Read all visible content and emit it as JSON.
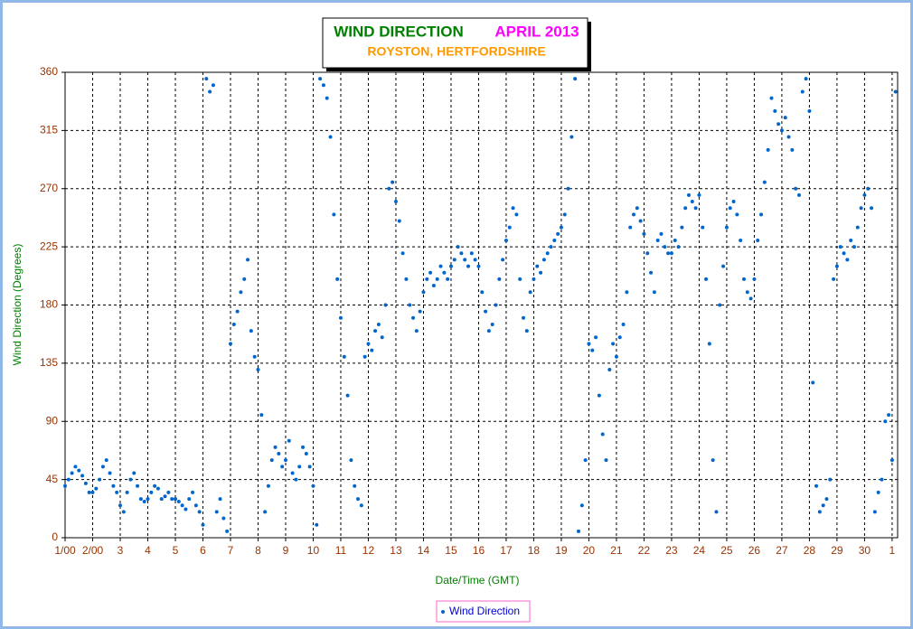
{
  "chart_data": {
    "type": "scatter",
    "title": "WIND DIRECTION",
    "title_date": "APRIL 2013",
    "subtitle": "ROYSTON, HERTFORDSHIRE",
    "x_label": "Date/Time (GMT)",
    "y_label": "Wind Direction (Degrees)",
    "xlim": [
      1,
      31.2
    ],
    "ylim": [
      0,
      360
    ],
    "xticks": [
      {
        "value": 1,
        "label": "1/00"
      },
      {
        "value": 2,
        "label": "2/00"
      },
      3,
      4,
      5,
      6,
      7,
      8,
      9,
      10,
      11,
      12,
      13,
      14,
      15,
      16,
      17,
      18,
      19,
      20,
      21,
      22,
      23,
      24,
      25,
      26,
      27,
      28,
      29,
      30,
      {
        "value": 31,
        "label": "1"
      }
    ],
    "yticks": [
      0,
      45,
      90,
      135,
      180,
      225,
      270,
      315,
      360
    ],
    "grid": true,
    "x": [
      1,
      1.125,
      1.25,
      1.375,
      1.5,
      1.625,
      1.75,
      1.875,
      2,
      2.125,
      2.25,
      2.375,
      2.5,
      2.625,
      2.75,
      2.875,
      3,
      3.125,
      3.25,
      3.375,
      3.5,
      3.625,
      3.75,
      3.875,
      4,
      4.125,
      4.25,
      4.375,
      4.5,
      4.625,
      4.75,
      4.875,
      5,
      5.125,
      5.25,
      5.375,
      5.5,
      5.625,
      5.75,
      5.875,
      6,
      6.125,
      6.25,
      6.375,
      6.5,
      6.625,
      6.75,
      6.875,
      7,
      7.125,
      7.25,
      7.375,
      7.5,
      7.625,
      7.75,
      7.875,
      8,
      8.125,
      8.25,
      8.375,
      8.5,
      8.625,
      8.75,
      8.875,
      9,
      9.125,
      9.25,
      9.375,
      9.5,
      9.625,
      9.75,
      9.875,
      10,
      10.125,
      10.25,
      10.375,
      10.5,
      10.625,
      10.75,
      10.875,
      11,
      11.125,
      11.25,
      11.375,
      11.5,
      11.625,
      11.75,
      11.875,
      12,
      12.125,
      12.25,
      12.375,
      12.5,
      12.625,
      12.75,
      12.875,
      13,
      13.125,
      13.25,
      13.375,
      13.5,
      13.625,
      13.75,
      13.875,
      14,
      14.125,
      14.25,
      14.375,
      14.5,
      14.625,
      14.75,
      14.875,
      15,
      15.125,
      15.25,
      15.375,
      15.5,
      15.625,
      15.75,
      15.875,
      16,
      16.125,
      16.25,
      16.375,
      16.5,
      16.625,
      16.75,
      16.875,
      17,
      17.125,
      17.25,
      17.375,
      17.5,
      17.625,
      17.75,
      17.875,
      18,
      18.125,
      18.25,
      18.375,
      18.5,
      18.625,
      18.75,
      18.875,
      19,
      19.125,
      19.25,
      19.375,
      19.5,
      19.625,
      19.75,
      19.875,
      20,
      20.125,
      20.25,
      20.375,
      20.5,
      20.625,
      20.75,
      20.875,
      21,
      21.125,
      21.25,
      21.375,
      21.5,
      21.625,
      21.75,
      21.875,
      22,
      22.125,
      22.25,
      22.375,
      22.5,
      22.625,
      22.75,
      22.875,
      23,
      23.125,
      23.25,
      23.375,
      23.5,
      23.625,
      23.75,
      23.875,
      24,
      24.125,
      24.25,
      24.375,
      24.5,
      24.625,
      24.75,
      24.875,
      25,
      25.125,
      25.25,
      25.375,
      25.5,
      25.625,
      25.75,
      25.875,
      26,
      26.125,
      26.25,
      26.375,
      26.5,
      26.625,
      26.75,
      26.875,
      27,
      27.125,
      27.25,
      27.375,
      27.5,
      27.625,
      27.75,
      27.875,
      28,
      28.125,
      28.25,
      28.375,
      28.5,
      28.625,
      28.75,
      28.875,
      29,
      29.125,
      29.25,
      29.375,
      29.5,
      29.625,
      29.75,
      29.875,
      30,
      30.125,
      30.25,
      30.375,
      30.5,
      30.625,
      30.75,
      30.875,
      31,
      31.125
    ],
    "series": [
      {
        "name": "Wind Direction",
        "color": "#0066cc",
        "values": [
          40,
          45,
          50,
          55,
          52,
          48,
          42,
          35,
          35,
          38,
          45,
          55,
          60,
          50,
          40,
          35,
          25,
          20,
          35,
          45,
          50,
          40,
          30,
          28,
          30,
          35,
          40,
          38,
          30,
          32,
          35,
          30,
          30,
          28,
          25,
          22,
          30,
          35,
          25,
          20,
          10,
          355,
          345,
          350,
          20,
          30,
          15,
          5,
          150,
          165,
          175,
          190,
          200,
          215,
          160,
          140,
          130,
          95,
          20,
          40,
          60,
          70,
          65,
          55,
          60,
          75,
          50,
          45,
          55,
          70,
          65,
          55,
          40,
          10,
          355,
          350,
          340,
          310,
          250,
          200,
          170,
          140,
          110,
          60,
          40,
          30,
          25,
          140,
          150,
          145,
          160,
          165,
          155,
          180,
          270,
          275,
          260,
          245,
          220,
          200,
          180,
          170,
          160,
          175,
          190,
          200,
          205,
          195,
          200,
          210,
          205,
          200,
          210,
          215,
          225,
          220,
          215,
          210,
          220,
          215,
          210,
          190,
          175,
          160,
          165,
          180,
          200,
          215,
          230,
          240,
          255,
          250,
          200,
          170,
          160,
          190,
          200,
          210,
          205,
          215,
          220,
          225,
          230,
          235,
          240,
          250,
          270,
          310,
          355,
          5,
          25,
          60,
          150,
          145,
          155,
          110,
          80,
          60,
          130,
          150,
          140,
          155,
          165,
          190,
          240,
          250,
          255,
          245,
          235,
          220,
          205,
          190,
          230,
          235,
          225,
          220,
          220,
          230,
          225,
          240,
          255,
          265,
          260,
          255,
          265,
          240,
          200,
          150,
          60,
          20,
          180,
          210,
          240,
          255,
          260,
          250,
          230,
          200,
          190,
          185,
          200,
          230,
          250,
          275,
          300,
          340,
          330,
          320,
          315,
          325,
          310,
          300,
          270,
          265,
          345,
          355,
          330,
          120,
          40,
          20,
          25,
          30,
          45,
          200,
          210,
          225,
          220,
          215,
          230,
          225,
          240,
          255,
          265,
          270,
          255,
          20,
          35,
          45,
          90,
          95,
          60,
          345
        ]
      }
    ]
  }
}
